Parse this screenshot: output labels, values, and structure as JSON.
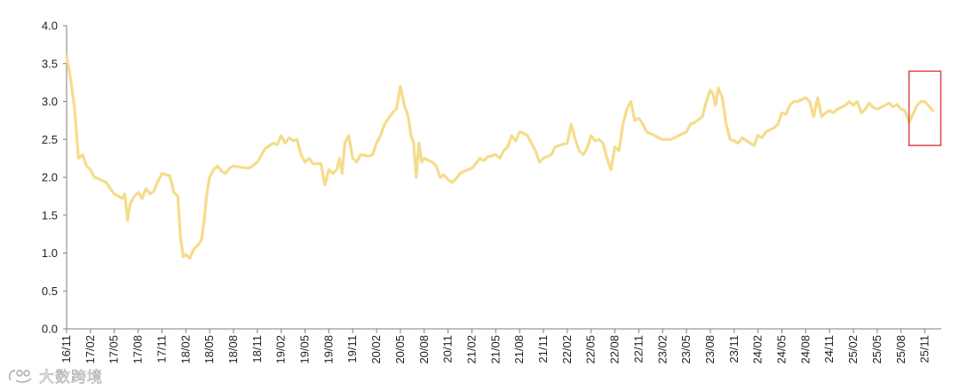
{
  "chart_data": {
    "type": "line",
    "title": "",
    "xlabel": "",
    "ylabel": "",
    "ylim": [
      0,
      4
    ],
    "yticks": [
      "0.0",
      "0.5",
      "1.0",
      "1.5",
      "2.0",
      "2.5",
      "3.0",
      "3.5",
      "4.0"
    ],
    "xticks": [
      "16/11",
      "17/02",
      "17/05",
      "17/08",
      "17/11",
      "18/02",
      "18/05",
      "18/08",
      "18/11",
      "19/02",
      "19/05",
      "19/08",
      "19/11",
      "20/02",
      "20/05",
      "20/08",
      "20/11",
      "21/02",
      "21/05",
      "21/08",
      "21/11",
      "22/02",
      "22/05",
      "22/08",
      "22/11",
      "23/02",
      "23/05",
      "23/08",
      "23/11",
      "24/02",
      "24/05",
      "24/08",
      "24/11",
      "25/02",
      "25/05",
      "25/08",
      "25/11"
    ],
    "grid": false,
    "legend": "none",
    "line_color": "#F5DC8C",
    "highlight_color": "#E05050",
    "highlight_box": {
      "x_from": "25/09",
      "x_to": "26/01",
      "y_from": 2.42,
      "y_to": 3.4
    },
    "series": [
      {
        "name": "",
        "points": [
          [
            "16/11",
            3.6
          ],
          [
            "16/11",
            3.3
          ],
          [
            "16/12",
            2.9
          ],
          [
            "16/12",
            2.25
          ],
          [
            "17/01",
            2.3
          ],
          [
            "17/01",
            2.15
          ],
          [
            "17/02",
            2.1
          ],
          [
            "17/02",
            2.0
          ],
          [
            "17/03",
            1.98
          ],
          [
            "17/04",
            1.93
          ],
          [
            "17/04",
            1.85
          ],
          [
            "17/05",
            1.78
          ],
          [
            "17/06",
            1.72
          ],
          [
            "17/06",
            1.78
          ],
          [
            "17/06",
            1.43
          ],
          [
            "17/07",
            1.65
          ],
          [
            "17/07",
            1.75
          ],
          [
            "17/08",
            1.8
          ],
          [
            "17/08",
            1.72
          ],
          [
            "17/09",
            1.85
          ],
          [
            "17/09",
            1.78
          ],
          [
            "17/10",
            1.82
          ],
          [
            "17/10",
            1.95
          ],
          [
            "17/11",
            2.05
          ],
          [
            "17/12",
            2.02
          ],
          [
            "17/12",
            1.8
          ],
          [
            "18/01",
            1.75
          ],
          [
            "18/01",
            1.2
          ],
          [
            "18/01",
            0.95
          ],
          [
            "18/02",
            0.98
          ],
          [
            "18/02",
            0.93
          ],
          [
            "18/03",
            1.05
          ],
          [
            "18/03",
            1.1
          ],
          [
            "18/04",
            1.18
          ],
          [
            "18/04",
            1.45
          ],
          [
            "18/04",
            1.8
          ],
          [
            "18/05",
            2.0
          ],
          [
            "18/05",
            2.1
          ],
          [
            "18/06",
            2.15
          ],
          [
            "18/06",
            2.08
          ],
          [
            "18/07",
            2.05
          ],
          [
            "18/07",
            2.12
          ],
          [
            "18/08",
            2.15
          ],
          [
            "18/09",
            2.13
          ],
          [
            "18/10",
            2.12
          ],
          [
            "18/11",
            2.2
          ],
          [
            "18/12",
            2.38
          ],
          [
            "19/01",
            2.45
          ],
          [
            "19/01",
            2.43
          ],
          [
            "19/02",
            2.55
          ],
          [
            "19/02",
            2.45
          ],
          [
            "19/03",
            2.52
          ],
          [
            "19/03",
            2.48
          ],
          [
            "19/04",
            2.5
          ],
          [
            "19/04",
            2.3
          ],
          [
            "19/05",
            2.2
          ],
          [
            "19/05",
            2.25
          ],
          [
            "19/06",
            2.18
          ],
          [
            "19/07",
            2.18
          ],
          [
            "19/07",
            1.9
          ],
          [
            "19/08",
            2.1
          ],
          [
            "19/08",
            2.05
          ],
          [
            "19/09",
            2.1
          ],
          [
            "19/09",
            2.25
          ],
          [
            "19/09",
            2.05
          ],
          [
            "19/10",
            2.45
          ],
          [
            "19/10",
            2.55
          ],
          [
            "19/11",
            2.25
          ],
          [
            "19/11",
            2.2
          ],
          [
            "19/12",
            2.3
          ],
          [
            "20/01",
            2.28
          ],
          [
            "20/01",
            2.3
          ],
          [
            "20/02",
            2.45
          ],
          [
            "20/02",
            2.55
          ],
          [
            "20/03",
            2.7
          ],
          [
            "20/04",
            2.85
          ],
          [
            "20/04",
            2.9
          ],
          [
            "20/05",
            3.2
          ],
          [
            "20/05",
            2.95
          ],
          [
            "20/06",
            2.8
          ],
          [
            "20/06",
            2.55
          ],
          [
            "20/06",
            2.45
          ],
          [
            "20/07",
            2.0
          ],
          [
            "20/07",
            2.45
          ],
          [
            "20/07",
            2.2
          ],
          [
            "20/08",
            2.25
          ],
          [
            "20/09",
            2.2
          ],
          [
            "20/09",
            2.15
          ],
          [
            "20/10",
            2.0
          ],
          [
            "20/10",
            2.03
          ],
          [
            "20/11",
            1.97
          ],
          [
            "20/11",
            1.93
          ],
          [
            "20/12",
            1.98
          ],
          [
            "20/12",
            2.05
          ],
          [
            "21/01",
            2.08
          ],
          [
            "21/02",
            2.12
          ],
          [
            "21/02",
            2.18
          ],
          [
            "21/03",
            2.25
          ],
          [
            "21/03",
            2.22
          ],
          [
            "21/04",
            2.27
          ],
          [
            "21/05",
            2.3
          ],
          [
            "21/05",
            2.25
          ],
          [
            "21/06",
            2.35
          ],
          [
            "21/06",
            2.4
          ],
          [
            "21/07",
            2.55
          ],
          [
            "21/07",
            2.48
          ],
          [
            "21/08",
            2.6
          ],
          [
            "21/08",
            2.58
          ],
          [
            "21/09",
            2.55
          ],
          [
            "21/10",
            2.35
          ],
          [
            "21/10",
            2.2
          ],
          [
            "21/11",
            2.25
          ],
          [
            "21/12",
            2.3
          ],
          [
            "21/12",
            2.4
          ],
          [
            "22/01",
            2.42
          ],
          [
            "22/02",
            2.45
          ],
          [
            "22/02",
            2.7
          ],
          [
            "22/03",
            2.5
          ],
          [
            "22/03",
            2.35
          ],
          [
            "22/04",
            2.3
          ],
          [
            "22/04",
            2.38
          ],
          [
            "22/05",
            2.55
          ],
          [
            "22/05",
            2.48
          ],
          [
            "22/06",
            2.5
          ],
          [
            "22/06",
            2.45
          ],
          [
            "22/07",
            2.25
          ],
          [
            "22/07",
            2.1
          ],
          [
            "22/08",
            2.4
          ],
          [
            "22/08",
            2.35
          ],
          [
            "22/09",
            2.7
          ],
          [
            "22/09",
            2.9
          ],
          [
            "22/10",
            3.0
          ],
          [
            "22/10",
            2.75
          ],
          [
            "22/11",
            2.78
          ],
          [
            "22/11",
            2.7
          ],
          [
            "22/12",
            2.6
          ],
          [
            "23/01",
            2.55
          ],
          [
            "23/01",
            2.52
          ],
          [
            "23/02",
            2.5
          ],
          [
            "23/03",
            2.5
          ],
          [
            "23/03",
            2.52
          ],
          [
            "23/04",
            2.55
          ],
          [
            "23/05",
            2.6
          ],
          [
            "23/05",
            2.7
          ],
          [
            "23/06",
            2.72
          ],
          [
            "23/07",
            2.8
          ],
          [
            "23/07",
            3.0
          ],
          [
            "23/08",
            3.15
          ],
          [
            "23/08",
            3.1
          ],
          [
            "23/08",
            2.95
          ],
          [
            "23/09",
            3.18
          ],
          [
            "23/09",
            3.05
          ],
          [
            "23/10",
            2.7
          ],
          [
            "23/10",
            2.5
          ],
          [
            "23/11",
            2.48
          ],
          [
            "23/11",
            2.45
          ],
          [
            "23/12",
            2.52
          ],
          [
            "24/01",
            2.45
          ],
          [
            "24/01",
            2.42
          ],
          [
            "24/02",
            2.55
          ],
          [
            "24/02",
            2.52
          ],
          [
            "24/03",
            2.6
          ],
          [
            "24/04",
            2.65
          ],
          [
            "24/04",
            2.7
          ],
          [
            "24/05",
            2.85
          ],
          [
            "24/05",
            2.83
          ],
          [
            "24/06",
            2.95
          ],
          [
            "24/06",
            3.0
          ],
          [
            "24/07",
            3.0
          ],
          [
            "24/08",
            3.05
          ],
          [
            "24/08",
            3.0
          ],
          [
            "24/09",
            2.8
          ],
          [
            "24/09",
            3.05
          ],
          [
            "24/10",
            2.8
          ],
          [
            "24/10",
            2.85
          ],
          [
            "24/11",
            2.88
          ],
          [
            "24/11",
            2.85
          ],
          [
            "24/12",
            2.9
          ],
          [
            "25/01",
            2.95
          ],
          [
            "25/01",
            3.0
          ],
          [
            "25/02",
            2.95
          ],
          [
            "25/02",
            3.0
          ],
          [
            "25/03",
            2.85
          ],
          [
            "25/03",
            2.9
          ],
          [
            "25/04",
            2.98
          ],
          [
            "25/04",
            2.92
          ],
          [
            "25/05",
            2.9
          ],
          [
            "25/06",
            2.95
          ],
          [
            "25/06",
            2.98
          ],
          [
            "25/07",
            2.93
          ],
          [
            "25/07",
            2.96
          ],
          [
            "25/08",
            2.9
          ],
          [
            "25/08",
            2.88
          ],
          [
            "25/09",
            2.72
          ],
          [
            "25/10",
            2.95
          ],
          [
            "25/10",
            3.0
          ],
          [
            "25/11",
            3.0
          ],
          [
            "25/12",
            2.88
          ]
        ]
      }
    ]
  },
  "watermark": {
    "text": "大数跨境"
  }
}
